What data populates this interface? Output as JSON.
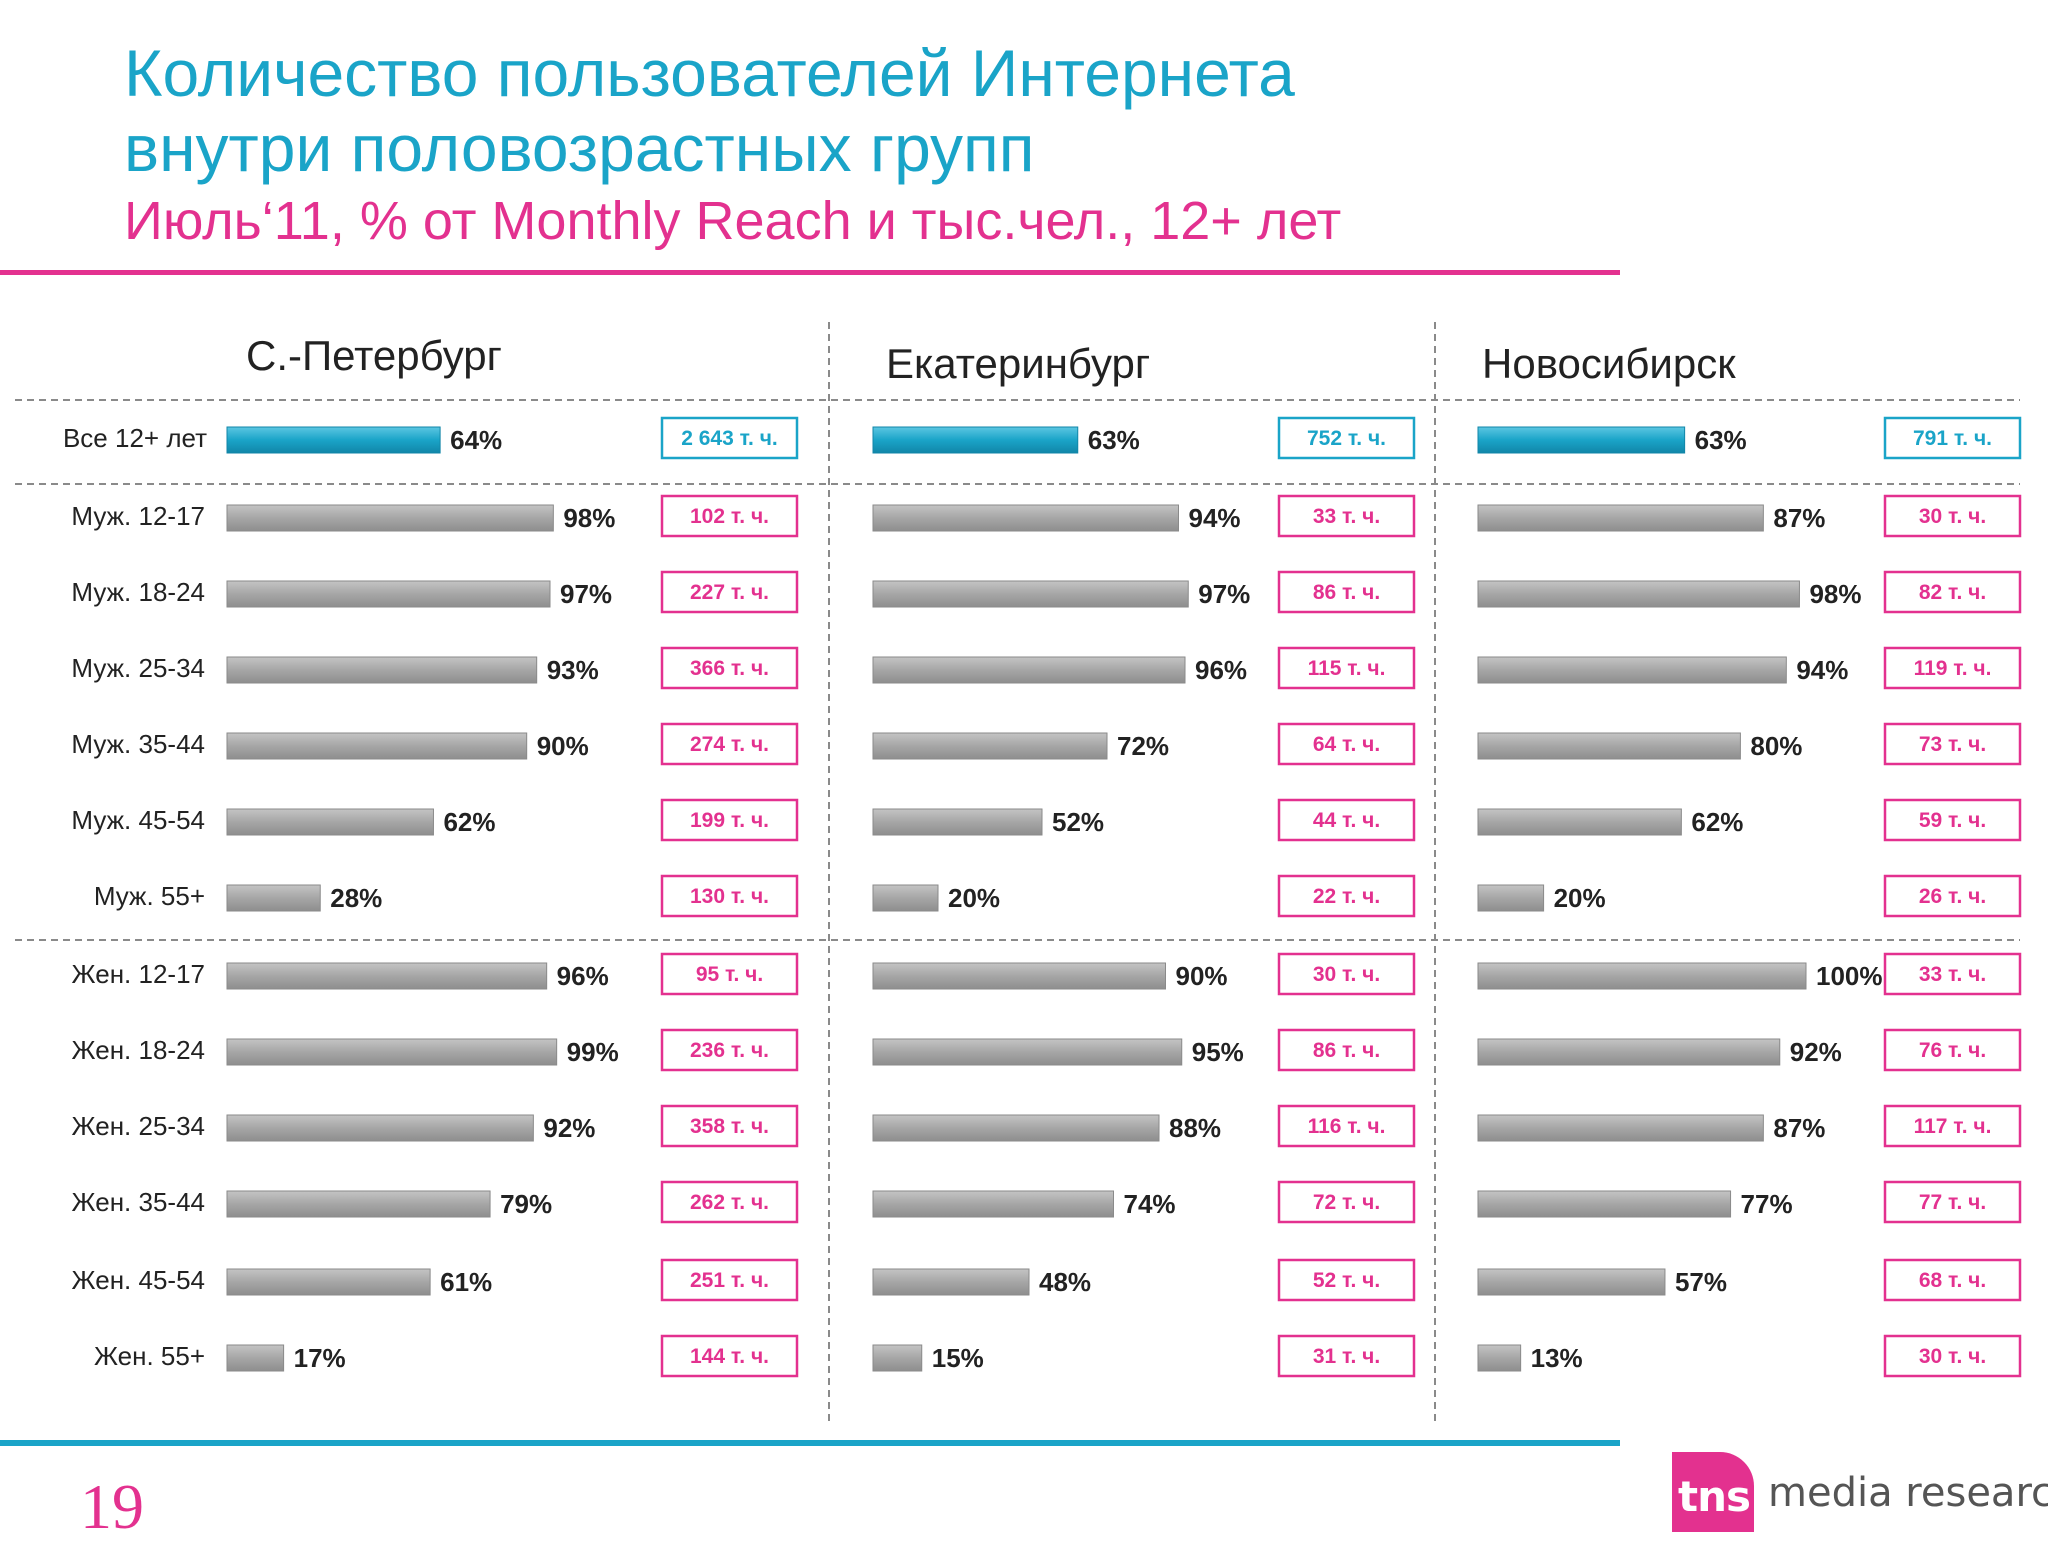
{
  "title_line1": "Количество пользователей Интернета",
  "title_line2": "внутри половозрастных групп",
  "subtitle": "Июль‘11, % от Monthly Reach и тыс.чел., 12+ лет",
  "page_number": "19",
  "logo": {
    "mark": "tns",
    "text": "media research"
  },
  "colors": {
    "total_bar": "#1aa4c8",
    "group_bar": "#a6a6a6",
    "total_box": "#1aa4c8",
    "group_box": "#e3318f",
    "title": "#1aa4c8",
    "accent": "#e3318f"
  },
  "chart_data": {
    "type": "bar",
    "orientation": "horizontal",
    "unit": "%",
    "xlim": [
      0,
      100
    ],
    "categories": [
      "Все 12+ лет",
      "Муж. 12-17",
      "Муж. 18-24",
      "Муж. 25-34",
      "Муж. 35-44",
      "Муж. 45-54",
      "Муж. 55+",
      "Жен. 12-17",
      "Жен. 18-24",
      "Жен. 25-34",
      "Жен. 35-44",
      "Жен. 45-54",
      "Жен. 55+"
    ],
    "series": [
      {
        "name": "С.-Петербург",
        "values": [
          64,
          98,
          97,
          93,
          90,
          62,
          28,
          96,
          99,
          92,
          79,
          61,
          17
        ],
        "labels": [
          "64%",
          "98%",
          "97%",
          "93%",
          "90%",
          "62%",
          "28%",
          "96%",
          "99%",
          "92%",
          "79%",
          "61%",
          "17%"
        ],
        "thousands": [
          "2 643 т. ч.",
          "102 т. ч.",
          "227 т. ч.",
          "366 т. ч.",
          "274 т. ч.",
          "199 т. ч.",
          "130 т. ч.",
          "95 т. ч.",
          "236 т. ч.",
          "358 т. ч.",
          "262 т. ч.",
          "251 т. ч.",
          "144 т. ч."
        ]
      },
      {
        "name": "Екатеринбург",
        "values": [
          63,
          94,
          97,
          96,
          72,
          52,
          20,
          90,
          95,
          88,
          74,
          48,
          15
        ],
        "labels": [
          "63%",
          "94%",
          "97%",
          "96%",
          "72%",
          "52%",
          "20%",
          "90%",
          "95%",
          "88%",
          "74%",
          "48%",
          "15%"
        ],
        "thousands": [
          "752 т. ч.",
          "33 т. ч.",
          "86 т. ч.",
          "115 т. ч.",
          "64 т. ч.",
          "44 т. ч.",
          "22 т. ч.",
          "30 т. ч.",
          "86 т. ч.",
          "116 т. ч.",
          "72 т. ч.",
          "52 т. ч.",
          "31 т. ч."
        ]
      },
      {
        "name": "Новосибирск",
        "values": [
          63,
          87,
          98,
          94,
          80,
          62,
          20,
          100,
          92,
          87,
          77,
          57,
          13
        ],
        "labels": [
          "63%",
          "87%",
          "98%",
          "94%",
          "80%",
          "62%",
          "20%",
          "100%",
          "92%",
          "87%",
          "77%",
          "57%",
          "13%"
        ],
        "thousands": [
          "791 т. ч.",
          "30 т. ч.",
          "82 т. ч.",
          "119 т. ч.",
          "73 т. ч.",
          "59 т. ч.",
          "26 т. ч.",
          "33 т. ч.",
          "76 т. ч.",
          "117 т. ч.",
          "77 т. ч.",
          "68 т. ч.",
          "30 т. ч."
        ]
      }
    ]
  }
}
